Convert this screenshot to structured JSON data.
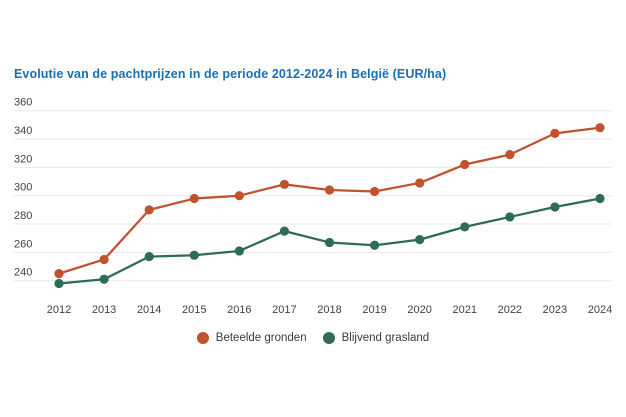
{
  "title": "Evolutie van de pachtprijzen in de periode 2012-2024 in België (EUR/ha)",
  "colors": {
    "title": "#1a6fb5",
    "axis_text": "#424242",
    "gridline": "#e8e8e8",
    "background": "#ffffff",
    "beteelde_gronden": "#c0522e",
    "blijvend_grasland": "#2e6b58"
  },
  "chart_data": {
    "type": "line",
    "title": "Evolutie van de pachtprijzen in de periode 2012-2024 in België (EUR/ha)",
    "xlabel": "",
    "ylabel": "",
    "categories": [
      "2012",
      "2013",
      "2014",
      "2015",
      "2016",
      "2017",
      "2018",
      "2019",
      "2020",
      "2021",
      "2022",
      "2023",
      "2024"
    ],
    "series": [
      {
        "name": "Beteelde gronden",
        "color": "#c0522e",
        "values": [
          245,
          255,
          290,
          298,
          300,
          308,
          304,
          303,
          309,
          322,
          329,
          344,
          348
        ]
      },
      {
        "name": "Blijvend grasland",
        "color": "#2e6b58",
        "values": [
          238,
          241,
          257,
          258,
          261,
          275,
          267,
          265,
          269,
          278,
          285,
          292,
          298
        ]
      }
    ],
    "yticks": [
      240,
      260,
      280,
      300,
      320,
      340,
      360
    ],
    "ylim": [
      232,
      366
    ],
    "grid": true,
    "legend_position": "bottom",
    "marker": "circle"
  },
  "legend": {
    "items": [
      {
        "label": "Beteelde gronden",
        "color": "#c0522e"
      },
      {
        "label": "Blijvend grasland",
        "color": "#2e6b58"
      }
    ]
  }
}
